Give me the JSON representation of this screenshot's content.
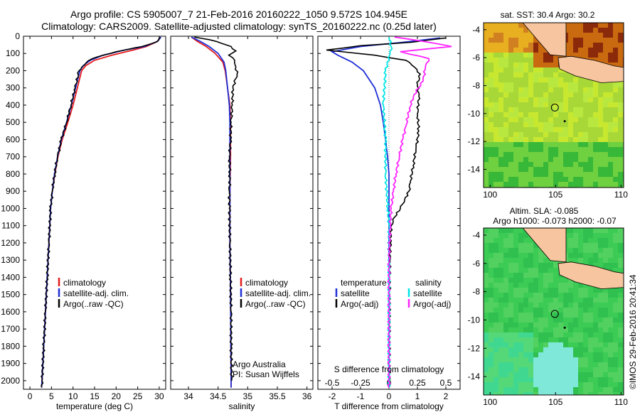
{
  "header": {
    "line1": "Argo profile: CS 5905007_7 21-Feb-2016 20160222_1050 9.572S 104.945E",
    "line2": "Climatology: CARS2009. Satellite-adjusted climatology: synTS_20160222.nc (0.25d later)"
  },
  "colors": {
    "climatology": "#e41a1c",
    "satellite": "#1f2fd6",
    "argo": "#000000",
    "salinity_satellite": "#00e5e5",
    "salinity_argo": "#ff22ff",
    "land": "#f7c59f"
  },
  "depth_axis": {
    "ylim": [
      0,
      2050
    ],
    "ticks": [
      0,
      100,
      200,
      300,
      400,
      500,
      600,
      700,
      800,
      900,
      1000,
      1100,
      1200,
      1300,
      1400,
      1500,
      1600,
      1700,
      1800,
      1900,
      2000
    ]
  },
  "chart_data": [
    {
      "id": "temperature",
      "type": "line",
      "xlabel": "temperature (deg C)",
      "xlim": [
        -1.5,
        31.5
      ],
      "xticks": [
        0,
        5,
        10,
        15,
        20,
        25,
        30
      ],
      "ylim": [
        0,
        2050
      ],
      "legend": [
        "climatology",
        "satellite-adj. clim.",
        "Argo(..raw -QC)"
      ],
      "series": [
        {
          "name": "climatology",
          "color_key": "climatology",
          "points": [
            [
              30.2,
              5
            ],
            [
              29.6,
              30
            ],
            [
              27,
              60
            ],
            [
              24,
              80
            ],
            [
              19,
              110
            ],
            [
              15,
              140
            ],
            [
              13,
              170
            ],
            [
              12,
              200
            ],
            [
              11,
              300
            ],
            [
              10,
              400
            ],
            [
              8.8,
              500
            ],
            [
              7.5,
              600
            ],
            [
              6.5,
              700
            ],
            [
              5.8,
              800
            ],
            [
              5.2,
              900
            ],
            [
              4.8,
              1000
            ],
            [
              4.4,
              1200
            ],
            [
              4,
              1400
            ],
            [
              3.6,
              1600
            ],
            [
              3.2,
              1800
            ],
            [
              2.8,
              2000
            ],
            [
              2.7,
              2040
            ]
          ]
        },
        {
          "name": "satellite-adj. clim.",
          "color_key": "satellite",
          "points": [
            [
              30.4,
              5
            ],
            [
              29.6,
              30
            ],
            [
              26.5,
              60
            ],
            [
              22,
              80
            ],
            [
              17,
              110
            ],
            [
              14,
              140
            ],
            [
              12.4,
              170
            ],
            [
              11.6,
              200
            ],
            [
              10.6,
              300
            ],
            [
              9.6,
              400
            ],
            [
              8.5,
              500
            ],
            [
              7.3,
              600
            ],
            [
              6.4,
              700
            ],
            [
              5.7,
              800
            ],
            [
              5.2,
              900
            ],
            [
              4.8,
              1000
            ],
            [
              4.4,
              1200
            ],
            [
              4,
              1400
            ],
            [
              3.6,
              1600
            ],
            [
              3.2,
              1800
            ],
            [
              2.8,
              2000
            ],
            [
              2.7,
              2040
            ]
          ]
        },
        {
          "name": "Argo(..raw -QC)",
          "color_key": "argo",
          "points": [
            [
              30.2,
              5
            ],
            [
              29.8,
              25
            ],
            [
              28,
              45
            ],
            [
              26,
              60
            ],
            [
              23,
              75
            ],
            [
              20,
              90
            ],
            [
              17,
              110
            ],
            [
              14.5,
              130
            ],
            [
              13,
              155
            ],
            [
              12,
              180
            ],
            [
              11.4,
              200
            ],
            [
              10.5,
              300
            ],
            [
              9.5,
              400
            ],
            [
              8.5,
              500
            ],
            [
              7.3,
              600
            ],
            [
              6.4,
              700
            ],
            [
              5.7,
              800
            ],
            [
              5.2,
              900
            ],
            [
              4.8,
              1000
            ],
            [
              4.4,
              1200
            ],
            [
              4,
              1400
            ],
            [
              3.6,
              1600
            ],
            [
              3.2,
              1800
            ],
            [
              2.8,
              2000
            ],
            [
              2.7,
              2040
            ]
          ]
        }
      ]
    },
    {
      "id": "salinity",
      "type": "line",
      "xlabel": "salinity",
      "xlim": [
        33.7,
        36.1
      ],
      "xticks": [
        34,
        34.5,
        35,
        35.5,
        36
      ],
      "ylim": [
        0,
        2050
      ],
      "legend": [
        "climatology",
        "satellite-adj. clim.",
        "Argo(..raw -QC)"
      ],
      "annotation": [
        "Argo Australia",
        "PI: Susan Wijffels"
      ],
      "series": [
        {
          "name": "climatology",
          "color_key": "climatology",
          "points": [
            [
              34.05,
              5
            ],
            [
              34.15,
              30
            ],
            [
              34.3,
              60
            ],
            [
              34.45,
              100
            ],
            [
              34.58,
              150
            ],
            [
              34.62,
              200
            ],
            [
              34.66,
              300
            ],
            [
              34.7,
              400
            ],
            [
              34.71,
              500
            ],
            [
              34.71,
              700
            ],
            [
              34.7,
              900
            ],
            [
              34.7,
              1200
            ],
            [
              34.71,
              1500
            ],
            [
              34.72,
              2040
            ]
          ]
        },
        {
          "name": "satellite-adj. clim.",
          "color_key": "satellite",
          "points": [
            [
              34.05,
              5
            ],
            [
              34.2,
              30
            ],
            [
              34.35,
              60
            ],
            [
              34.5,
              100
            ],
            [
              34.6,
              150
            ],
            [
              34.63,
              200
            ],
            [
              34.66,
              300
            ],
            [
              34.69,
              400
            ],
            [
              34.7,
              500
            ],
            [
              34.7,
              700
            ],
            [
              34.7,
              900
            ],
            [
              34.7,
              1200
            ],
            [
              34.71,
              1500
            ],
            [
              34.72,
              2040
            ]
          ]
        },
        {
          "name": "Argo(..raw -QC)",
          "color_key": "argo",
          "points": [
            [
              34.1,
              5
            ],
            [
              34.35,
              20
            ],
            [
              34.55,
              40
            ],
            [
              34.72,
              60
            ],
            [
              34.8,
              85
            ],
            [
              34.68,
              110
            ],
            [
              34.78,
              140
            ],
            [
              34.8,
              180
            ],
            [
              34.82,
              220
            ],
            [
              34.75,
              300
            ],
            [
              34.74,
              400
            ],
            [
              34.72,
              500
            ],
            [
              34.71,
              600
            ],
            [
              34.69,
              700
            ],
            [
              34.7,
              800
            ],
            [
              34.69,
              900
            ],
            [
              34.69,
              1000
            ],
            [
              34.7,
              1200
            ],
            [
              34.71,
              1400
            ],
            [
              34.72,
              1600
            ],
            [
              34.72,
              1800
            ],
            [
              34.73,
              2000
            ]
          ]
        }
      ]
    },
    {
      "id": "differences",
      "type": "line",
      "xlabel": "T difference from climatology",
      "xlim": [
        -2.5,
        2.5
      ],
      "xticks": [
        -2,
        -1,
        0,
        1,
        2
      ],
      "top_xlabel": "S difference from climatology",
      "top_xticks": [
        -0.5,
        -0.25,
        0,
        0.25,
        0.5
      ],
      "ylim": [
        0,
        2050
      ],
      "legend_left": {
        "title": "temperature",
        "items": [
          "satellite",
          "Argo(-adj)"
        ]
      },
      "legend_right": {
        "title": "salinity",
        "items": [
          "satellite",
          "Argo(-adj)"
        ]
      },
      "series": [
        {
          "name": "temperature satellite",
          "color_key": "satellite",
          "points": [
            [
              1.8,
              10
            ],
            [
              0.5,
              35
            ],
            [
              -1,
              60
            ],
            [
              -2,
              90
            ],
            [
              -1.8,
              110
            ],
            [
              -1.3,
              150
            ],
            [
              -0.9,
              200
            ],
            [
              -0.5,
              300
            ],
            [
              -0.3,
              400
            ],
            [
              -0.2,
              500
            ],
            [
              -0.12,
              600
            ],
            [
              -0.05,
              700
            ],
            [
              0,
              800
            ],
            [
              0,
              1000
            ],
            [
              0,
              1200
            ],
            [
              0,
              2040
            ]
          ]
        },
        {
          "name": "temperature Argo(-adj)",
          "color_key": "argo",
          "points": [
            [
              2,
              10
            ],
            [
              0.8,
              35
            ],
            [
              -1,
              55
            ],
            [
              -2.2,
              80
            ],
            [
              -0.5,
              110
            ],
            [
              0.6,
              140
            ],
            [
              0.9,
              180
            ],
            [
              1.1,
              220
            ],
            [
              1,
              280
            ],
            [
              1.05,
              350
            ],
            [
              1.0,
              450
            ],
            [
              1.05,
              550
            ],
            [
              0.95,
              650
            ],
            [
              0.85,
              750
            ],
            [
              0.75,
              850
            ],
            [
              0.7,
              900
            ],
            [
              0.55,
              950
            ],
            [
              0.4,
              1000
            ],
            [
              0.2,
              1050
            ],
            [
              0.08,
              1100
            ],
            [
              0.05,
              1200
            ],
            [
              0.03,
              1300
            ],
            [
              0.02,
              1400
            ],
            [
              0.02,
              1500
            ],
            [
              0.01,
              1700
            ],
            [
              0.01,
              2040
            ]
          ]
        },
        {
          "name": "salinity satellite",
          "color_key": "salinity_satellite",
          "points": [
            [
              0,
              5
            ],
            [
              0.02,
              60
            ],
            [
              0.01,
              100
            ],
            [
              -0.03,
              200
            ],
            [
              -0.05,
              400
            ],
            [
              -0.03,
              600
            ],
            [
              -0.03,
              800
            ],
            [
              -0.01,
              1000
            ],
            [
              0,
              1100
            ],
            [
              0,
              2040
            ]
          ]
        },
        {
          "name": "salinity Argo(-adj)",
          "color_key": "salinity_argo",
          "points": [
            [
              0.05,
              5
            ],
            [
              0.35,
              35
            ],
            [
              0.55,
              60
            ],
            [
              0.1,
              90
            ],
            [
              0.35,
              130
            ],
            [
              0.32,
              180
            ],
            [
              0.3,
              260
            ],
            [
              0.22,
              340
            ],
            [
              0.18,
              420
            ],
            [
              0.15,
              520
            ],
            [
              0.12,
              600
            ],
            [
              0.09,
              700
            ],
            [
              0.06,
              800
            ],
            [
              0.04,
              900
            ],
            [
              0.02,
              1000
            ],
            [
              0.01,
              1100
            ],
            [
              0,
              1300
            ],
            [
              0,
              2040
            ]
          ]
        }
      ]
    },
    {
      "id": "sst-map",
      "type": "heatmap",
      "title": "sat. SST: 30.4 Argo: 30.2",
      "xlim": [
        99.5,
        110.2
      ],
      "ylim": [
        -15.3,
        -3.5
      ],
      "xticks": [
        100,
        105,
        110
      ],
      "yticks": [
        -4,
        -6,
        -8,
        -10,
        -12,
        -14
      ],
      "float_position": [
        104.945,
        -9.572
      ],
      "marker": [
        105.7,
        -10.55
      ]
    },
    {
      "id": "sla-map",
      "type": "heatmap",
      "title": "Altim. SLA: -0.085",
      "subtitle": "Argo h1000: -0.073 h2000: -0.07",
      "xlim": [
        99.5,
        110.2
      ],
      "ylim": [
        -15.3,
        -3.5
      ],
      "xticks": [
        100,
        105,
        110
      ],
      "yticks": [
        -4,
        -6,
        -8,
        -10,
        -12,
        -14
      ],
      "float_position": [
        104.945,
        -9.572
      ],
      "marker": [
        105.7,
        -10.55
      ]
    }
  ],
  "stamp": "©IMOS 29-Feb-2016 20:41:34"
}
